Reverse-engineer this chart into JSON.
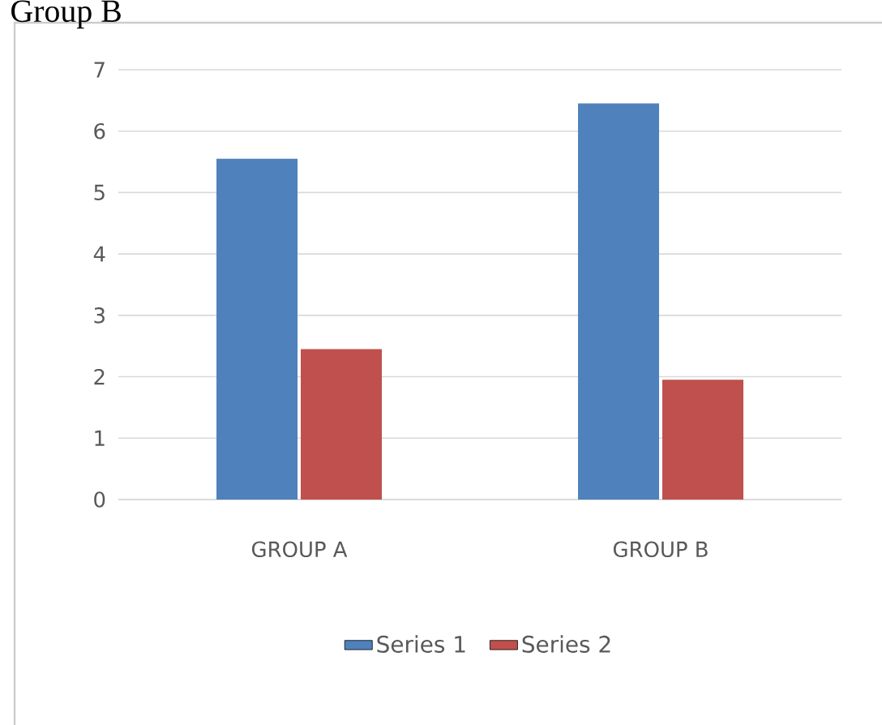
{
  "chart_data": {
    "type": "bar",
    "title": "Group B",
    "categories": [
      "GROUP A",
      "GROUP B"
    ],
    "series": [
      {
        "name": "Series 1",
        "color": "#4f81bd",
        "values": [
          5.55,
          6.45
        ]
      },
      {
        "name": "Series 2",
        "color": "#c0504d",
        "values": [
          2.45,
          1.95
        ]
      }
    ],
    "ylim": [
      0,
      7
    ],
    "yticks": [
      0,
      1,
      2,
      3,
      4,
      5,
      6,
      7
    ],
    "grid": "y",
    "legend": "bottom"
  }
}
